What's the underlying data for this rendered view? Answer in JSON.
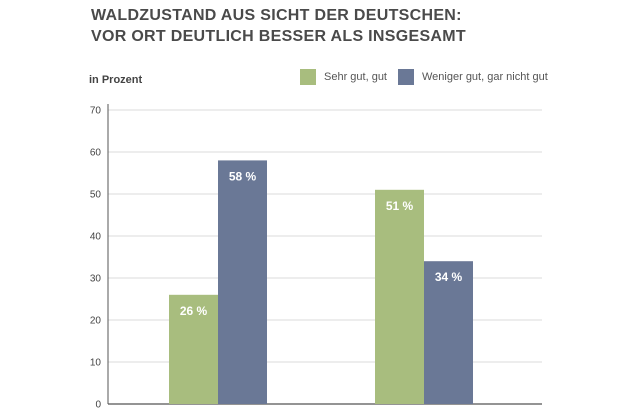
{
  "chart_data": {
    "type": "bar",
    "title": [
      "WALDZUSTAND AUS SICHT DER DEUTSCHEN:",
      "VOR ORT DEUTLICH BESSER ALS INSGESAMT"
    ],
    "ylabel": "in Prozent",
    "xlabel": "",
    "ylim": [
      0,
      70
    ],
    "yticks": [
      0,
      10,
      20,
      30,
      40,
      50,
      60,
      70
    ],
    "grid": true,
    "legend_position": "top-right",
    "categories": [
      "",
      ""
    ],
    "series": [
      {
        "name": "Sehr gut, gut",
        "color": "#a8bd7e",
        "values": [
          26,
          51
        ],
        "labels": [
          "26 %",
          "51 %"
        ]
      },
      {
        "name": "Weniger gut, gar nicht gut",
        "color": "#6a7896",
        "values": [
          58,
          34
        ],
        "labels": [
          "58 %",
          "34 %"
        ]
      }
    ]
  }
}
